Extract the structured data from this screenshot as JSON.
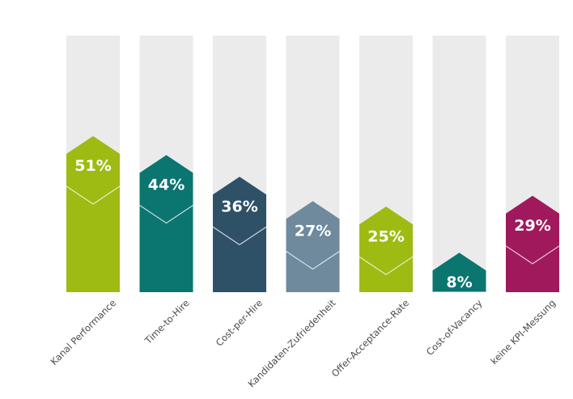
{
  "chart_data": {
    "type": "bar",
    "categories": [
      "Kanal Performance",
      "Time-to-Hire",
      "Cost-per-Hire",
      "Kandidaten-Zufriedenheit",
      "Offer-Acceptance-Rate",
      "Cost-of-Vacancy",
      "keine KPI-Messung"
    ],
    "values": [
      51,
      44,
      36,
      27,
      25,
      8,
      29
    ],
    "value_labels": [
      "51%",
      "44%",
      "36%",
      "27%",
      "25%",
      "8%",
      "29%"
    ],
    "colors": [
      "#9dbb12",
      "#0b7570",
      "#2f5168",
      "#6e8a9c",
      "#9dbb12",
      "#0b7570",
      "#a0195c"
    ],
    "track_color": "#ebebeb",
    "ylim": [
      0,
      100
    ],
    "grid": false,
    "title": "",
    "xlabel": "",
    "ylabel": ""
  }
}
